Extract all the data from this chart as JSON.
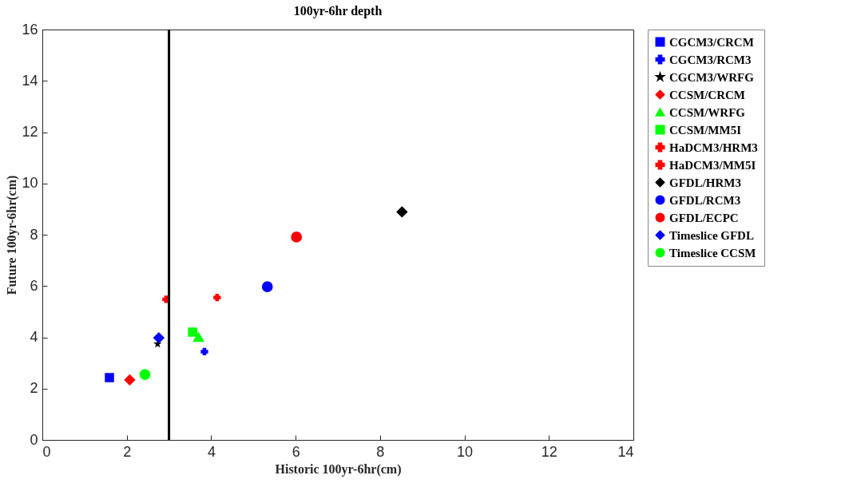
{
  "chart_data": {
    "type": "scatter",
    "title": "100yr-6hr depth",
    "xlabel": "Historic 100yr-6hr(cm)",
    "ylabel": "Future 100yr-6hr(cm)",
    "xlim": [
      0,
      14
    ],
    "xticks": [
      0,
      2,
      4,
      6,
      8,
      10,
      12,
      14
    ],
    "ylim": [
      0,
      16
    ],
    "yticks": [
      0,
      2,
      4,
      6,
      8,
      10,
      12,
      14,
      16
    ],
    "grid": false,
    "legend": "right",
    "ref_lines": [
      {
        "axis": "x",
        "value": 3,
        "color": "#000000"
      }
    ],
    "series": [
      {
        "name": "CGCM3/CRCM",
        "color": "#0000ff",
        "marker": "square",
        "x": [
          1.59
        ],
        "values": [
          2.43
        ]
      },
      {
        "name": "CGCM3/RCM3",
        "color": "#0000ff",
        "marker": "cross",
        "x": [
          3.84
        ],
        "values": [
          3.44
        ]
      },
      {
        "name": "CGCM3/WRFG",
        "color": "#000000",
        "marker": "star",
        "x": [
          2.73
        ],
        "values": [
          3.74
        ]
      },
      {
        "name": "CCSM/CRCM",
        "color": "#ff0000",
        "marker": "diamond",
        "x": [
          2.07
        ],
        "values": [
          2.34
        ]
      },
      {
        "name": "CCSM/WRFG",
        "color": "#00ff00",
        "marker": "triangle",
        "x": [
          3.7
        ],
        "values": [
          4.01
        ]
      },
      {
        "name": "CCSM/MM5I",
        "color": "#00ff00",
        "marker": "square",
        "x": [
          3.56
        ],
        "values": [
          4.2
        ]
      },
      {
        "name": "HaDCM3/HRM3",
        "color": "#ff0000",
        "marker": "cross",
        "x": [
          2.93
        ],
        "values": [
          5.48
        ]
      },
      {
        "name": "HaDCM3/MM5I",
        "color": "#ff0000",
        "marker": "cross",
        "x": [
          4.14
        ],
        "values": [
          5.55
        ]
      },
      {
        "name": "GFDL/HRM3",
        "color": "#000000",
        "marker": "diamond",
        "x": [
          8.52
        ],
        "values": [
          8.89
        ]
      },
      {
        "name": "GFDL/RCM3",
        "color": "#0000ff",
        "marker": "circle",
        "x": [
          5.33
        ],
        "values": [
          5.97
        ]
      },
      {
        "name": "GFDL/ECPC",
        "color": "#ff0000",
        "marker": "circle",
        "x": [
          6.02
        ],
        "values": [
          7.91
        ]
      },
      {
        "name": "Timeslice GFDL",
        "color": "#0000ff",
        "marker": "diamond",
        "x": [
          2.76
        ],
        "values": [
          3.98
        ]
      },
      {
        "name": "Timeslice CCSM",
        "color": "#00ff00",
        "marker": "circle",
        "x": [
          2.43
        ],
        "values": [
          2.55
        ]
      }
    ]
  }
}
